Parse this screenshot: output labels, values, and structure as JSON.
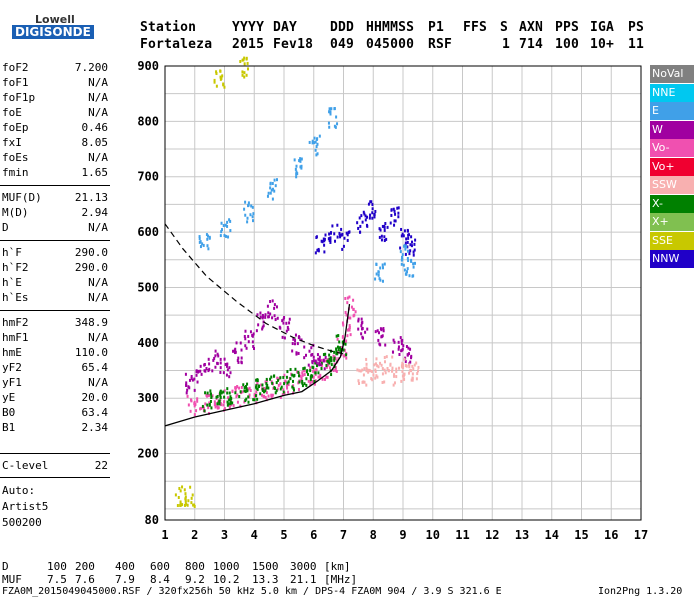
{
  "logo": {
    "line1": "Lowell",
    "line2": "DIGISONDE"
  },
  "header": {
    "row1": [
      "Station",
      "YYYY",
      "DAY",
      "DDD",
      "HHMMSS",
      "P1",
      "FFS",
      "S",
      "AXN",
      "PPS",
      "IGA",
      "PS"
    ],
    "row2": [
      "Fortaleza",
      "2015",
      "Fev18",
      "049",
      "045000",
      "RSF",
      "",
      "1",
      "714",
      "100",
      "10+",
      "11"
    ]
  },
  "params": [
    {
      "name": "foF2",
      "value": "7.200"
    },
    {
      "name": "foF1",
      "value": "N/A"
    },
    {
      "name": "foF1p",
      "value": "N/A"
    },
    {
      "name": "foE",
      "value": "N/A"
    },
    {
      "name": "foEp",
      "value": "0.46"
    },
    {
      "name": "fxI",
      "value": "8.05"
    },
    {
      "name": "foEs",
      "value": "N/A"
    },
    {
      "name": "fmin",
      "value": "1.65"
    },
    {
      "name": "MUF(D)",
      "value": "21.13"
    },
    {
      "name": "M(D)",
      "value": "2.94"
    },
    {
      "name": "D",
      "value": "N/A"
    },
    {
      "name": "h`F",
      "value": "290.0"
    },
    {
      "name": "h`F2",
      "value": "290.0"
    },
    {
      "name": "h`E",
      "value": "N/A"
    },
    {
      "name": "h`Es",
      "value": "N/A"
    },
    {
      "name": "hmF2",
      "value": "348.9"
    },
    {
      "name": "hmF1",
      "value": "N/A"
    },
    {
      "name": "hmE",
      "value": "110.0"
    },
    {
      "name": "yF2",
      "value": "65.4"
    },
    {
      "name": "yF1",
      "value": "N/A"
    },
    {
      "name": "yE",
      "value": "20.0"
    },
    {
      "name": "B0",
      "value": "63.4"
    },
    {
      "name": "B1",
      "value": "2.34"
    },
    {
      "name": "C-level",
      "value": "22"
    }
  ],
  "auto": {
    "label": "Auto:",
    "program": "Artist5",
    "version": "500200"
  },
  "legend": [
    {
      "label": "NoVal",
      "color": "#808080"
    },
    {
      "label": "NNE",
      "color": "#00c8f0"
    },
    {
      "label": "E",
      "color": "#40a0e8"
    },
    {
      "label": "W",
      "color": "#a000a0"
    },
    {
      "label": "Vo-",
      "color": "#f050b0"
    },
    {
      "label": "Vo+",
      "color": "#f00030"
    },
    {
      "label": "SSW",
      "color": "#f8b0b0"
    },
    {
      "label": "X-",
      "color": "#008000"
    },
    {
      "label": "X+",
      "color": "#80c050"
    },
    {
      "label": "SSE",
      "color": "#c8c800"
    },
    {
      "label": "NNW",
      "color": "#2000c8"
    }
  ],
  "bottom": {
    "d_label": "D",
    "d_values": [
      "100",
      "200",
      "400",
      "600",
      "800",
      "1000",
      "1500",
      "3000",
      "[km]"
    ],
    "muf_label": "MUF",
    "muf_values": [
      "7.5",
      "7.6",
      "7.9",
      "8.4",
      "9.2",
      "10.2",
      "13.3",
      "21.1",
      "[MHz]"
    ],
    "footer": "FZA0M_2015049045000.RSF / 320fx256h 50 kHz 5.0 km / DPS-4 FZA0M 904 / 3.9 S 321.6 E",
    "version": "Ion2Png 1.3.20"
  },
  "chart_data": {
    "type": "scatter",
    "xlim": [
      1,
      17
    ],
    "ylim": [
      80,
      900
    ],
    "x_ticks": [
      "1",
      "2",
      "3",
      "4",
      "5",
      "6",
      "7",
      "8",
      "9",
      "10",
      "11",
      "12",
      "13",
      "14",
      "15",
      "16",
      "17"
    ],
    "y_ticks": [
      "80",
      "200",
      "300",
      "400",
      "500",
      "600",
      "700",
      "800",
      "900"
    ],
    "grid": true,
    "series": [
      {
        "name": "Vo-",
        "color": "#f050b0",
        "points": [
          [
            1.9,
            290
          ],
          [
            2.3,
            292
          ],
          [
            2.7,
            295
          ],
          [
            3.1,
            300
          ],
          [
            3.5,
            306
          ],
          [
            3.9,
            312
          ],
          [
            4.3,
            318
          ],
          [
            4.7,
            322
          ],
          [
            5.1,
            328
          ],
          [
            5.5,
            334
          ],
          [
            5.9,
            343
          ],
          [
            6.3,
            355
          ],
          [
            6.6,
            368
          ],
          [
            6.9,
            392
          ],
          [
            7.1,
            430
          ],
          [
            7.2,
            470
          ]
        ]
      },
      {
        "name": "X-",
        "color": "#008000",
        "points": [
          [
            2.4,
            298
          ],
          [
            2.8,
            302
          ],
          [
            3.2,
            307
          ],
          [
            3.6,
            313
          ],
          [
            4.0,
            318
          ],
          [
            4.4,
            324
          ],
          [
            4.8,
            330
          ],
          [
            5.2,
            336
          ],
          [
            5.6,
            344
          ],
          [
            6.0,
            352
          ],
          [
            6.4,
            364
          ],
          [
            6.7,
            378
          ],
          [
            6.9,
            398
          ]
        ]
      },
      {
        "name": "W",
        "color": "#a000a0",
        "points": [
          [
            1.8,
            330
          ],
          [
            2.2,
            350
          ],
          [
            2.6,
            370
          ],
          [
            3.0,
            360
          ],
          [
            3.4,
            385
          ],
          [
            3.8,
            410
          ],
          [
            4.2,
            440
          ],
          [
            4.6,
            460
          ],
          [
            5.0,
            430
          ],
          [
            5.4,
            400
          ],
          [
            5.8,
            380
          ],
          [
            6.2,
            370
          ],
          [
            7.6,
            430
          ],
          [
            8.2,
            410
          ],
          [
            8.8,
            400
          ],
          [
            9.1,
            380
          ]
        ]
      },
      {
        "name": "SSW",
        "color": "#f8b0b0",
        "points": [
          [
            7.6,
            340
          ],
          [
            7.9,
            355
          ],
          [
            8.2,
            350
          ],
          [
            8.5,
            360
          ],
          [
            8.8,
            345
          ],
          [
            9.1,
            355
          ],
          [
            9.4,
            350
          ]
        ]
      },
      {
        "name": "NNW",
        "color": "#2000c8",
        "points": [
          [
            6.2,
            580
          ],
          [
            6.6,
            600
          ],
          [
            7.0,
            590
          ],
          [
            7.6,
            620
          ],
          [
            7.9,
            640
          ],
          [
            8.3,
            600
          ],
          [
            8.7,
            630
          ],
          [
            9.0,
            590
          ],
          [
            9.2,
            580
          ]
        ]
      },
      {
        "name": "E",
        "color": "#40a0e8",
        "points": [
          [
            2.3,
            580
          ],
          [
            3.0,
            610
          ],
          [
            3.8,
            640
          ],
          [
            4.6,
            680
          ],
          [
            5.4,
            720
          ],
          [
            6.0,
            760
          ],
          [
            6.6,
            810
          ],
          [
            8.2,
            530
          ],
          [
            9.0,
            560
          ],
          [
            9.2,
            540
          ]
        ]
      },
      {
        "name": "SSE",
        "color": "#c8c800",
        "points": [
          [
            1.5,
            125
          ],
          [
            1.8,
            125
          ],
          [
            2.8,
            880
          ],
          [
            3.6,
            900
          ]
        ]
      }
    ],
    "curves": {
      "profile": [
        [
          1,
          250
        ],
        [
          2,
          266
        ],
        [
          3,
          278
        ],
        [
          4,
          290
        ],
        [
          5,
          305
        ],
        [
          5.6,
          312
        ],
        [
          6.1,
          330
        ],
        [
          6.6,
          350
        ],
        [
          6.9,
          375
        ],
        [
          7.05,
          410
        ],
        [
          7.2,
          470
        ]
      ],
      "muf_dashed": [
        [
          1,
          615
        ],
        [
          1.6,
          570
        ],
        [
          2.4,
          520
        ],
        [
          3.4,
          475
        ],
        [
          4.4,
          435
        ],
        [
          5.3,
          410
        ],
        [
          6.0,
          395
        ],
        [
          6.6,
          385
        ],
        [
          7.0,
          380
        ]
      ]
    }
  }
}
